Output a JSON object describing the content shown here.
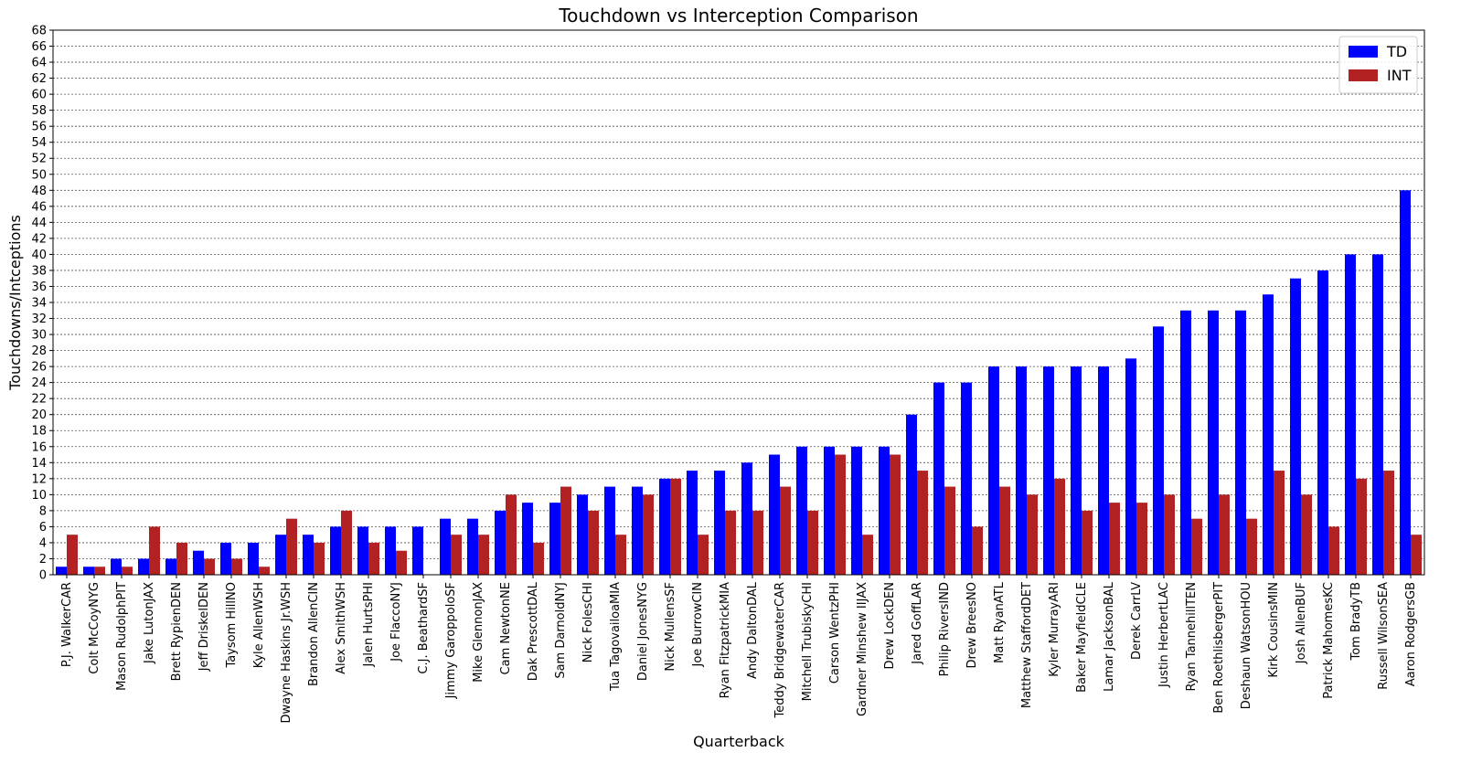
{
  "chart_data": {
    "type": "bar",
    "title": "Touchdown vs Interception Comparison",
    "xlabel": "Quarterback",
    "ylabel": "Touchdowns/Intceptions",
    "ylim": [
      0,
      68
    ],
    "ytick_step": 2,
    "grid": "horizontal dotted",
    "legend_position": "top-right",
    "categories": [
      "P.J. WalkerCAR",
      "Colt McCoyNYG",
      "Mason RudolphPIT",
      "Jake LutonJAX",
      "Brett RypienDEN",
      "Jeff DriskelDEN",
      "Taysom HillNO",
      "Kyle AllenWSH",
      "Dwayne Haskins Jr.WSH",
      "Brandon AllenCIN",
      "Alex SmithWSH",
      "Jalen HurtsPHI",
      "Joe FlaccoNYJ",
      "C.J. BeathardSF",
      "Jimmy GaroppoloSF",
      "Mike GlennonJAX",
      "Cam NewtonNE",
      "Dak PrescottDAL",
      "Sam DarnoldNYJ",
      "Nick FolesCHI",
      "Tua TagovailoaMIA",
      "Daniel JonesNYG",
      "Nick MullensSF",
      "Joe BurrowCIN",
      "Ryan FitzpatrickMIA",
      "Andy DaltonDAL",
      "Teddy BridgewaterCAR",
      "Mitchell TrubiskyCHI",
      "Carson WentzPHI",
      "Gardner Minshew IIJAX",
      "Drew LockDEN",
      "Jared GoffLAR",
      "Philip RiversIND",
      "Drew BreesNO",
      "Matt RyanATL",
      "Matthew StaffordDET",
      "Kyler MurrayARI",
      "Baker MayfieldCLE",
      "Lamar JacksonBAL",
      "Derek CarrLV",
      "Justin HerbertLAC",
      "Ryan TannehillTEN",
      "Ben RoethlisbergerPIT",
      "Deshaun WatsonHOU",
      "Kirk CousinsMIN",
      "Josh AllenBUF",
      "Patrick MahomesKC",
      "Tom BradyTB",
      "Russell WilsonSEA",
      "Aaron RodgersGB"
    ],
    "series": [
      {
        "name": "TD",
        "color": "#0000ff",
        "values": [
          1,
          1,
          2,
          2,
          2,
          3,
          4,
          4,
          5,
          5,
          6,
          6,
          6,
          6,
          7,
          7,
          8,
          9,
          9,
          10,
          11,
          11,
          12,
          13,
          13,
          14,
          15,
          16,
          16,
          16,
          16,
          20,
          24,
          24,
          26,
          26,
          26,
          26,
          26,
          27,
          31,
          33,
          33,
          33,
          35,
          37,
          38,
          40,
          40,
          48
        ]
      },
      {
        "name": "INT",
        "color": "#b22222",
        "values": [
          5,
          1,
          1,
          6,
          4,
          2,
          2,
          1,
          7,
          4,
          8,
          4,
          3,
          0,
          5,
          5,
          10,
          4,
          11,
          8,
          5,
          10,
          12,
          5,
          8,
          8,
          11,
          8,
          15,
          5,
          15,
          13,
          11,
          6,
          11,
          10,
          12,
          8,
          9,
          9,
          10,
          7,
          10,
          7,
          13,
          10,
          6,
          12,
          13,
          5
        ]
      }
    ]
  }
}
